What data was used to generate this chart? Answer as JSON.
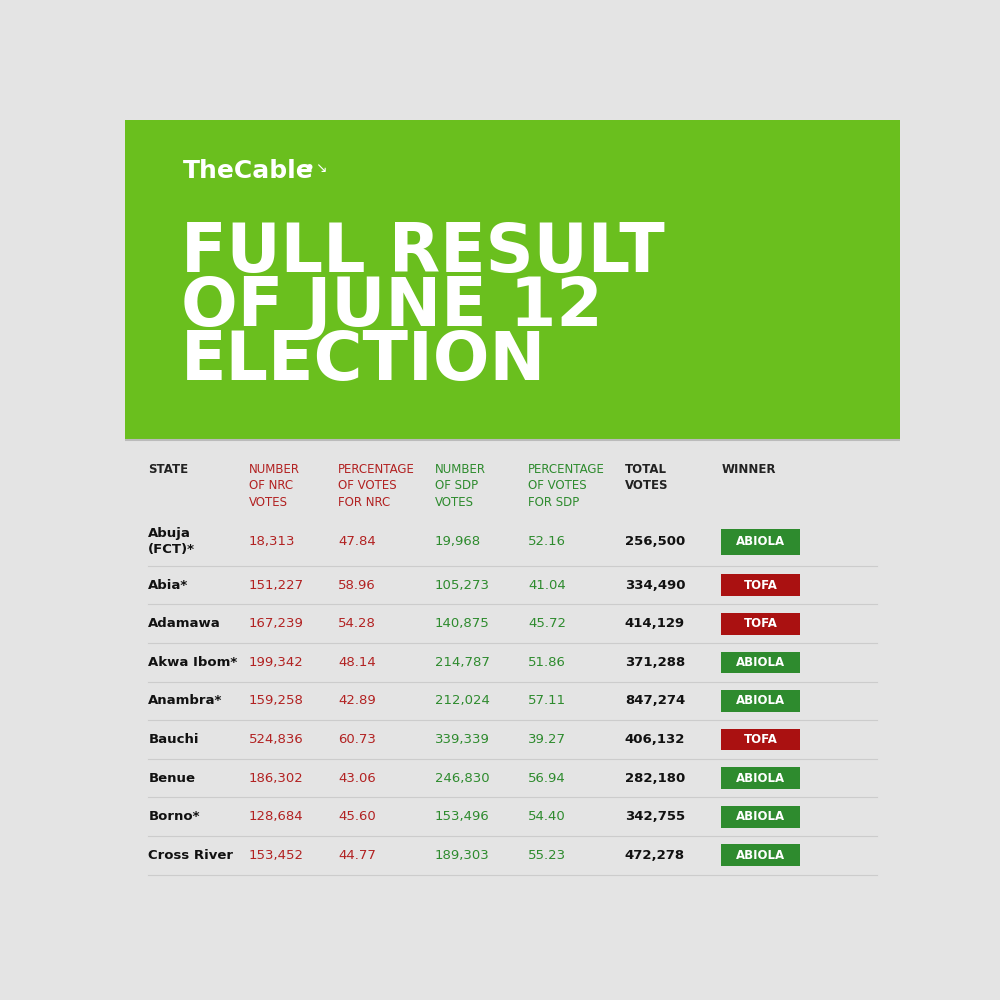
{
  "brand": "TheCable∙",
  "title_line1": "FULL RESULT",
  "title_line2": "OF JUNE 12",
  "title_line3": "ELECTION",
  "header_bg": "#6abf1e",
  "table_bg": "#e4e4e4",
  "col_headers": [
    "STATE",
    "NUMBER\nOF NRC\nVOTES",
    "PERCENTAGE\nOF VOTES\nFOR NRC",
    "NUMBER\nOF SDP\nVOTES",
    "PERCENTAGE\nOF VOTES\nFOR SDP",
    "TOTAL\nVOTES",
    "WINNER"
  ],
  "col_header_colors": [
    "#222222",
    "#b22222",
    "#b22222",
    "#2e8b2e",
    "#2e8b2e",
    "#222222",
    "#222222"
  ],
  "rows": [
    [
      "Abuja\n(FCT)*",
      "18,313",
      "47.84",
      "19,968",
      "52.16",
      "256,500",
      "ABIOLA"
    ],
    [
      "Abia*",
      "151,227",
      "58.96",
      "105,273",
      "41.04",
      "334,490",
      "TOFA"
    ],
    [
      "Adamawa",
      "167,239",
      "54.28",
      "140,875",
      "45.72",
      "414,129",
      "TOFA"
    ],
    [
      "Akwa Ibom*",
      "199,342",
      "48.14",
      "214,787",
      "51.86",
      "371,288",
      "ABIOLA"
    ],
    [
      "Anambra*",
      "159,258",
      "42.89",
      "212,024",
      "57.11",
      "847,274",
      "ABIOLA"
    ],
    [
      "Bauchi",
      "524,836",
      "60.73",
      "339,339",
      "39.27",
      "406,132",
      "TOFA"
    ],
    [
      "Benue",
      "186,302",
      "43.06",
      "246,830",
      "56.94",
      "282,180",
      "ABIOLA"
    ],
    [
      "Borno*",
      "128,684",
      "45.60",
      "153,496",
      "54.40",
      "342,755",
      "ABIOLA"
    ],
    [
      "Cross River",
      "153,452",
      "44.77",
      "189,303",
      "55.23",
      "472,278",
      "ABIOLA"
    ]
  ],
  "nrc_color": "#b22222",
  "sdp_color": "#2e8b2e",
  "total_color": "#111111",
  "state_color": "#111111",
  "abiola_bg": "#2e8b2e",
  "tofa_bg": "#aa1111",
  "winner_text_color": "#ffffff",
  "header_split": 0.415
}
